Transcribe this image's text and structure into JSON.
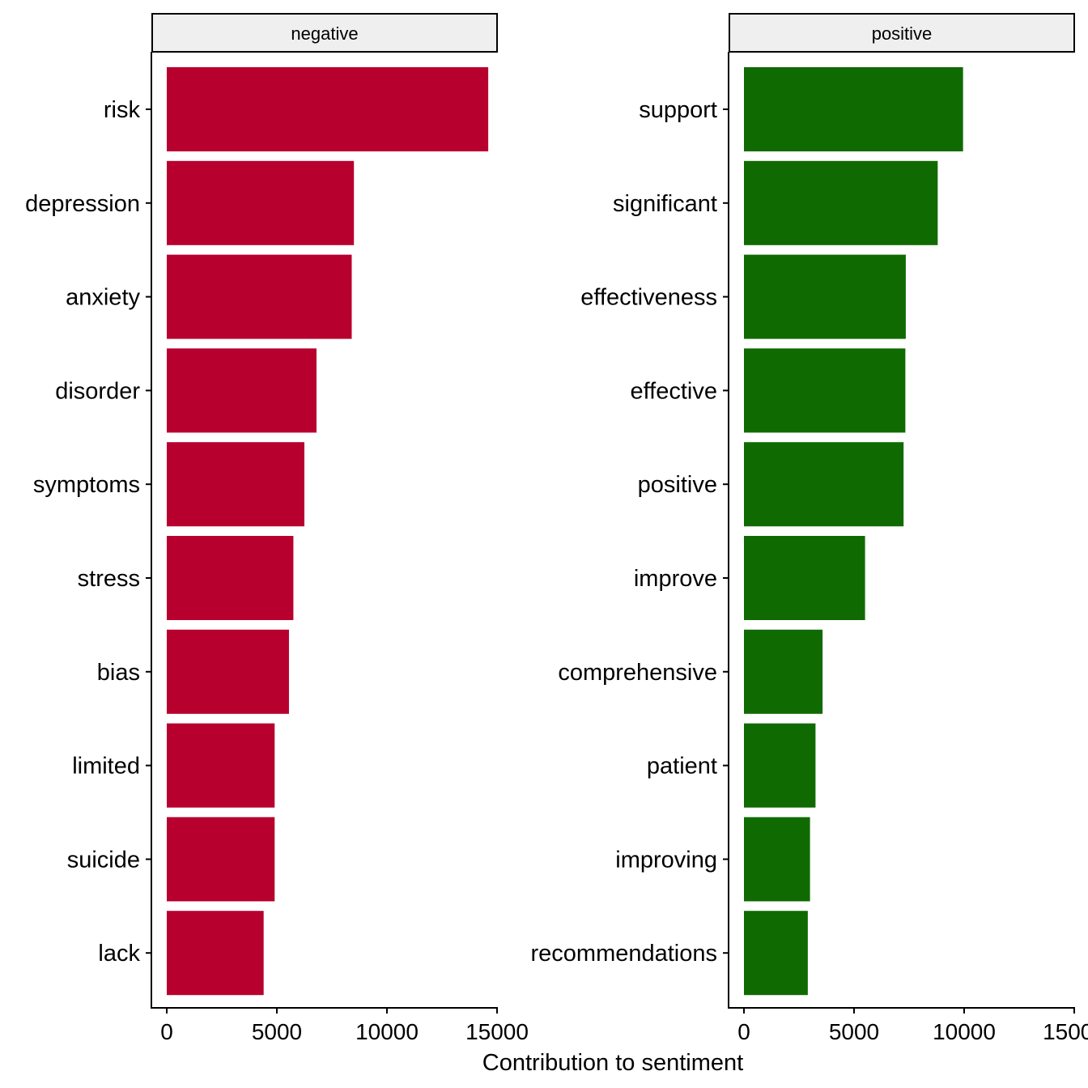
{
  "chart_data": {
    "type": "bar",
    "orientation": "horizontal",
    "xlabel": "Contribution to sentiment",
    "ylabel": "",
    "xlim": [
      0,
      15000
    ],
    "xticks": [
      0,
      5000,
      10000,
      15000
    ],
    "xtick_labels": [
      "0",
      "5000",
      "10000",
      "15000"
    ],
    "grid": false,
    "legend": "none",
    "panels": [
      {
        "facet": "negative",
        "color": "#B8002F",
        "categories": [
          "risk",
          "depression",
          "anxiety",
          "disorder",
          "symptoms",
          "stress",
          "bias",
          "limited",
          "suicide",
          "lack"
        ],
        "values": [
          14600,
          8500,
          8400,
          6800,
          6250,
          5750,
          5550,
          4900,
          4900,
          4400
        ]
      },
      {
        "facet": "positive",
        "color": "#106A02",
        "categories": [
          "support",
          "significant",
          "effectiveness",
          "effective",
          "positive",
          "improve",
          "comprehensive",
          "patient",
          "improving",
          "recommendations"
        ],
        "values": [
          9950,
          8800,
          7350,
          7330,
          7250,
          5500,
          3570,
          3250,
          3000,
          2900
        ]
      }
    ]
  }
}
